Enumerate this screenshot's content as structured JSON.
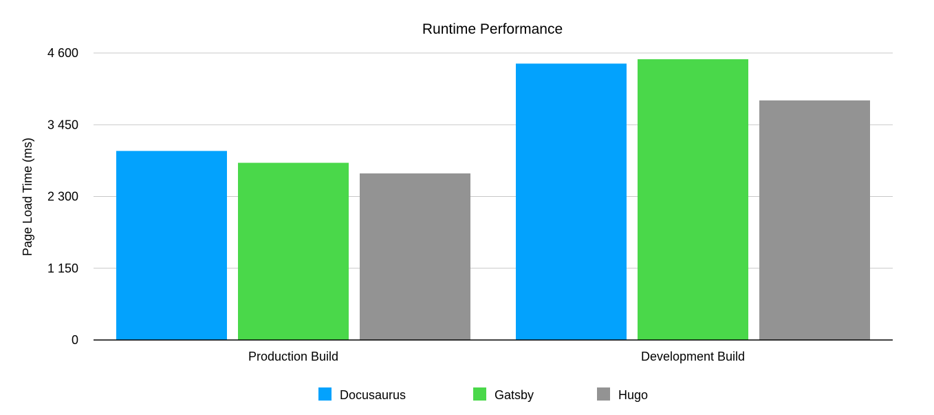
{
  "chart_data": {
    "type": "bar",
    "title": "Runtime Performance",
    "xlabel": "",
    "ylabel": "Page Load Time (ms)",
    "ylim": [
      0,
      4600
    ],
    "yticks": [
      0,
      1150,
      2300,
      3450,
      4600
    ],
    "ytick_labels": [
      "0",
      "1 150",
      "2 300",
      "3 450",
      "4 600"
    ],
    "categories": [
      "Production Build",
      "Development Build"
    ],
    "series": [
      {
        "name": "Docusaurus",
        "color": "#03a2fd",
        "values": [
          3030,
          4430
        ]
      },
      {
        "name": "Gatsby",
        "color": "#4ad84a",
        "values": [
          2840,
          4500
        ]
      },
      {
        "name": "Hugo",
        "color": "#939393",
        "values": [
          2670,
          3840
        ]
      }
    ],
    "grid": true,
    "legend_position": "bottom-center"
  }
}
